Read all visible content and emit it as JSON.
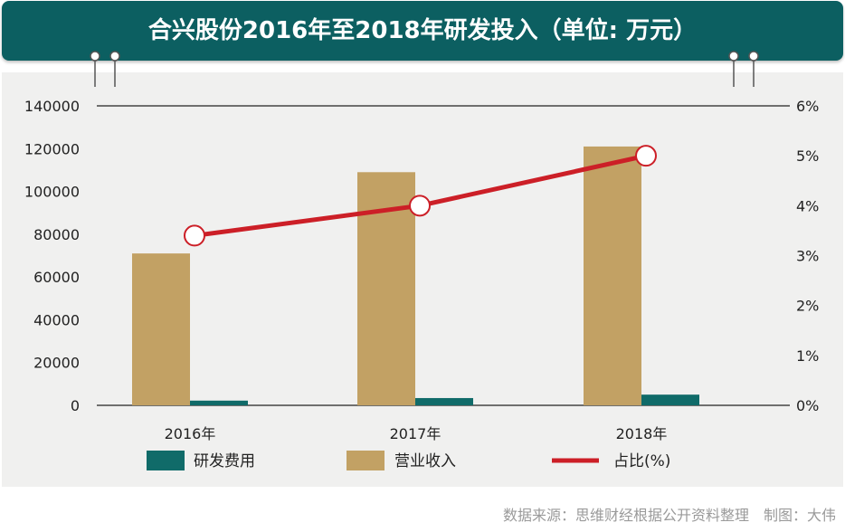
{
  "title": "合兴股份2016年至2018年研发投入（单位: 万元）",
  "source_text": "数据来源：思维财经根据公开资料整理　制图：大伟",
  "colors": {
    "title_bg": "#0c5f61",
    "rd": "#106b69",
    "revenue": "#c2a164",
    "ratio": "#cc1f27",
    "panel": "#f0f0ef"
  },
  "chart_data": {
    "type": "bar",
    "categories": [
      "2016年",
      "2017年",
      "2018年"
    ],
    "series": [
      {
        "name": "研发费用",
        "type": "bar",
        "axis": "left",
        "values": [
          2200,
          3400,
          5000
        ]
      },
      {
        "name": "营业收入",
        "type": "bar",
        "axis": "left",
        "values": [
          71000,
          109000,
          121000
        ]
      },
      {
        "name": "占比(%)",
        "type": "line",
        "axis": "right",
        "values": [
          3.4,
          4.0,
          5.0
        ]
      }
    ],
    "left_axis": {
      "ylim": [
        0,
        140000
      ],
      "ticks": [
        "0",
        "20000",
        "40000",
        "60000",
        "80000",
        "100000",
        "120000",
        "140000"
      ]
    },
    "right_axis": {
      "ylim": [
        0,
        6
      ],
      "ticks": [
        "0%",
        "1%",
        "2%",
        "3%",
        "4%",
        "5%",
        "6%"
      ]
    },
    "legend_position": "bottom"
  }
}
